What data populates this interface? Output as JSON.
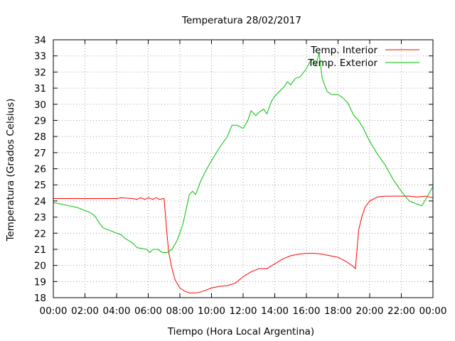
{
  "chart_data": {
    "type": "line",
    "title": "Temperatura 28/02/2017",
    "xlabel": "Tiempo (Hora Local Argentina)",
    "ylabel": "Temperatura (Grados Celsius)",
    "ylim": [
      18,
      34
    ],
    "xlim": [
      0,
      24
    ],
    "grid": true,
    "legend_position": "top-right",
    "xticks": [
      {
        "x": 0,
        "label": "00:00"
      },
      {
        "x": 2,
        "label": "02:00"
      },
      {
        "x": 4,
        "label": "04:00"
      },
      {
        "x": 6,
        "label": "06:00"
      },
      {
        "x": 8,
        "label": "08:00"
      },
      {
        "x": 10,
        "label": "10:00"
      },
      {
        "x": 12,
        "label": "12:00"
      },
      {
        "x": 14,
        "label": "14:00"
      },
      {
        "x": 16,
        "label": "16:00"
      },
      {
        "x": 18,
        "label": "18:00"
      },
      {
        "x": 20,
        "label": "20:00"
      },
      {
        "x": 22,
        "label": "22:00"
      },
      {
        "x": 24,
        "label": "00:00"
      }
    ],
    "yticks": [
      {
        "y": 18,
        "label": "18"
      },
      {
        "y": 19,
        "label": "19"
      },
      {
        "y": 20,
        "label": "20"
      },
      {
        "y": 21,
        "label": "21"
      },
      {
        "y": 22,
        "label": "22"
      },
      {
        "y": 23,
        "label": "23"
      },
      {
        "y": 24,
        "label": "24"
      },
      {
        "y": 25,
        "label": "25"
      },
      {
        "y": 26,
        "label": "26"
      },
      {
        "y": 27,
        "label": "27"
      },
      {
        "y": 28,
        "label": "28"
      },
      {
        "y": 29,
        "label": "29"
      },
      {
        "y": 30,
        "label": "30"
      },
      {
        "y": 31,
        "label": "31"
      },
      {
        "y": 32,
        "label": "32"
      },
      {
        "y": 33,
        "label": "33"
      },
      {
        "y": 34,
        "label": "34"
      }
    ],
    "series": [
      {
        "name": "Temp. Interior",
        "color": "#ff0000",
        "points": [
          [
            0,
            24.15
          ],
          [
            1,
            24.15
          ],
          [
            2,
            24.15
          ],
          [
            3,
            24.15
          ],
          [
            4,
            24.15
          ],
          [
            4.3,
            24.2
          ],
          [
            5,
            24.15
          ],
          [
            5.3,
            24.1
          ],
          [
            5.5,
            24.2
          ],
          [
            5.8,
            24.1
          ],
          [
            6.0,
            24.2
          ],
          [
            6.3,
            24.1
          ],
          [
            6.5,
            24.2
          ],
          [
            6.7,
            24.1
          ],
          [
            7.0,
            24.15
          ],
          [
            7.1,
            23.0
          ],
          [
            7.2,
            21.8
          ],
          [
            7.3,
            20.8
          ],
          [
            7.5,
            19.8
          ],
          [
            7.7,
            19.1
          ],
          [
            8.0,
            18.6
          ],
          [
            8.3,
            18.4
          ],
          [
            8.6,
            18.3
          ],
          [
            9.0,
            18.3
          ],
          [
            9.3,
            18.35
          ],
          [
            9.6,
            18.45
          ],
          [
            10.0,
            18.6
          ],
          [
            10.5,
            18.7
          ],
          [
            11.0,
            18.75
          ],
          [
            11.5,
            18.9
          ],
          [
            12.0,
            19.3
          ],
          [
            12.5,
            19.6
          ],
          [
            13.0,
            19.8
          ],
          [
            13.5,
            19.8
          ],
          [
            14.0,
            20.1
          ],
          [
            14.5,
            20.4
          ],
          [
            15.0,
            20.6
          ],
          [
            15.5,
            20.7
          ],
          [
            16.0,
            20.75
          ],
          [
            16.5,
            20.75
          ],
          [
            17.0,
            20.7
          ],
          [
            17.5,
            20.6
          ],
          [
            18.0,
            20.5
          ],
          [
            18.5,
            20.25
          ],
          [
            18.8,
            20.05
          ],
          [
            19.0,
            19.9
          ],
          [
            19.1,
            19.8
          ],
          [
            19.2,
            21.0
          ],
          [
            19.3,
            22.2
          ],
          [
            19.5,
            23.0
          ],
          [
            19.7,
            23.6
          ],
          [
            20.0,
            24.0
          ],
          [
            20.5,
            24.25
          ],
          [
            21.0,
            24.3
          ],
          [
            21.5,
            24.3
          ],
          [
            22.0,
            24.3
          ],
          [
            22.5,
            24.3
          ],
          [
            23.0,
            24.25
          ],
          [
            23.5,
            24.3
          ],
          [
            24.0,
            24.2
          ]
        ]
      },
      {
        "name": "Temp. Exterior",
        "color": "#00c000",
        "points": [
          [
            0,
            23.9
          ],
          [
            0.5,
            23.8
          ],
          [
            1.0,
            23.7
          ],
          [
            1.5,
            23.6
          ],
          [
            2.0,
            23.4
          ],
          [
            2.3,
            23.3
          ],
          [
            2.6,
            23.1
          ],
          [
            2.8,
            22.8
          ],
          [
            3.0,
            22.5
          ],
          [
            3.2,
            22.3
          ],
          [
            3.5,
            22.2
          ],
          [
            4.0,
            22.0
          ],
          [
            4.3,
            21.9
          ],
          [
            4.5,
            21.7
          ],
          [
            5.0,
            21.4
          ],
          [
            5.3,
            21.1
          ],
          [
            5.6,
            21.05
          ],
          [
            5.9,
            21.0
          ],
          [
            6.1,
            20.8
          ],
          [
            6.3,
            21.0
          ],
          [
            6.6,
            21.0
          ],
          [
            6.9,
            20.8
          ],
          [
            7.2,
            20.8
          ],
          [
            7.5,
            21.0
          ],
          [
            7.8,
            21.5
          ],
          [
            8.0,
            22.0
          ],
          [
            8.2,
            22.6
          ],
          [
            8.4,
            23.5
          ],
          [
            8.6,
            24.4
          ],
          [
            8.8,
            24.6
          ],
          [
            9.0,
            24.4
          ],
          [
            9.3,
            25.2
          ],
          [
            9.6,
            25.8
          ],
          [
            10.0,
            26.5
          ],
          [
            10.5,
            27.3
          ],
          [
            11.0,
            28.0
          ],
          [
            11.3,
            28.7
          ],
          [
            11.6,
            28.7
          ],
          [
            12.0,
            28.5
          ],
          [
            12.3,
            29.0
          ],
          [
            12.5,
            29.6
          ],
          [
            12.8,
            29.3
          ],
          [
            13.0,
            29.5
          ],
          [
            13.3,
            29.7
          ],
          [
            13.5,
            29.4
          ],
          [
            13.8,
            30.2
          ],
          [
            14.0,
            30.5
          ],
          [
            14.3,
            30.8
          ],
          [
            14.6,
            31.1
          ],
          [
            14.8,
            31.4
          ],
          [
            15.0,
            31.2
          ],
          [
            15.3,
            31.6
          ],
          [
            15.6,
            31.7
          ],
          [
            16.0,
            32.2
          ],
          [
            16.2,
            32.6
          ],
          [
            16.4,
            32.8
          ],
          [
            16.6,
            32.4
          ],
          [
            16.8,
            33.2
          ],
          [
            17.0,
            31.6
          ],
          [
            17.3,
            30.8
          ],
          [
            17.6,
            30.6
          ],
          [
            18.0,
            30.6
          ],
          [
            18.3,
            30.4
          ],
          [
            18.6,
            30.1
          ],
          [
            19.0,
            29.3
          ],
          [
            19.3,
            29.0
          ],
          [
            19.6,
            28.5
          ],
          [
            20.0,
            27.7
          ],
          [
            20.5,
            26.9
          ],
          [
            21.0,
            26.2
          ],
          [
            21.5,
            25.3
          ],
          [
            22.0,
            24.6
          ],
          [
            22.5,
            24.0
          ],
          [
            23.0,
            23.8
          ],
          [
            23.3,
            23.7
          ],
          [
            23.6,
            24.2
          ],
          [
            24.0,
            24.9
          ]
        ]
      }
    ]
  }
}
